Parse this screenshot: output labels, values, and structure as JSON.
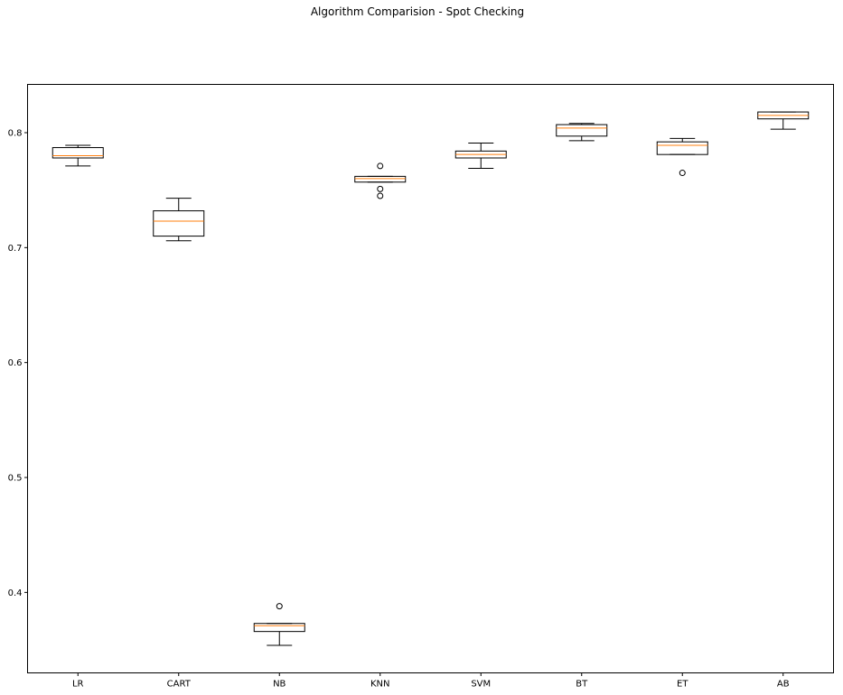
{
  "chart_data": {
    "type": "boxplot",
    "title": "Algorithm Comparision - Spot Checking",
    "xlabel": "",
    "ylabel": "",
    "ylim": [
      0.33,
      0.842
    ],
    "yticks": [
      0.4,
      0.5,
      0.6,
      0.7,
      0.8
    ],
    "ytick_labels": [
      "0.4",
      "0.5",
      "0.6",
      "0.7",
      "0.8"
    ],
    "grid": false,
    "categories": [
      "LR",
      "CART",
      "NB",
      "KNN",
      "SVM",
      "BT",
      "ET",
      "AB"
    ],
    "boxes": [
      {
        "name": "LR",
        "whislo": 0.771,
        "q1": 0.778,
        "med": 0.78,
        "q3": 0.787,
        "whishi": 0.789,
        "fliers": []
      },
      {
        "name": "CART",
        "whislo": 0.706,
        "q1": 0.71,
        "med": 0.723,
        "q3": 0.732,
        "whishi": 0.743,
        "fliers": []
      },
      {
        "name": "NB",
        "whislo": 0.354,
        "q1": 0.366,
        "med": 0.371,
        "q3": 0.373,
        "whishi": 0.373,
        "fliers": [
          0.388
        ]
      },
      {
        "name": "KNN",
        "whislo": 0.757,
        "q1": 0.757,
        "med": 0.76,
        "q3": 0.762,
        "whishi": 0.762,
        "fliers": [
          0.771,
          0.751,
          0.745
        ]
      },
      {
        "name": "SVM",
        "whislo": 0.769,
        "q1": 0.778,
        "med": 0.781,
        "q3": 0.784,
        "whishi": 0.791,
        "fliers": []
      },
      {
        "name": "BT",
        "whislo": 0.793,
        "q1": 0.797,
        "med": 0.804,
        "q3": 0.807,
        "whishi": 0.808,
        "fliers": []
      },
      {
        "name": "ET",
        "whislo": 0.781,
        "q1": 0.781,
        "med": 0.789,
        "q3": 0.792,
        "whishi": 0.795,
        "fliers": [
          0.765
        ]
      },
      {
        "name": "AB",
        "whislo": 0.803,
        "q1": 0.812,
        "med": 0.815,
        "q3": 0.818,
        "whishi": 0.818,
        "fliers": []
      }
    ],
    "colors": {
      "box": "#000000",
      "median": "#ff7f0e",
      "flier": "#000000"
    }
  }
}
